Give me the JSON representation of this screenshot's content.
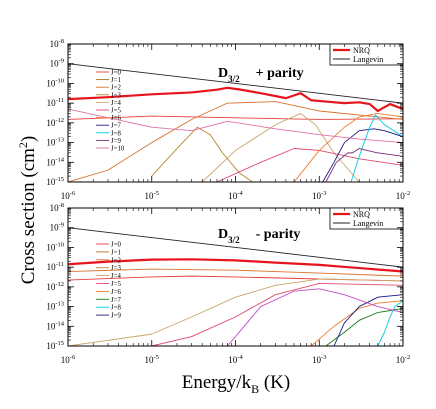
{
  "figure": {
    "ylabel": "Cross section (cm",
    "ylabel_sup": "2",
    "ylabel_close": ")",
    "xlabel_main": "Energy/k",
    "xlabel_sub": "B",
    "xlabel_unit": " (K)"
  },
  "chart_data": [
    {
      "type": "line",
      "title_main": "D",
      "title_sub": "3/2",
      "title_tail": "+ parity",
      "xscale": "log",
      "yscale": "log",
      "xlim": [
        1e-06,
        0.01
      ],
      "ylim": [
        1e-15,
        1e-08
      ],
      "x_ticks": [
        {
          "v": 1e-06,
          "b": "10",
          "e": "-6"
        },
        {
          "v": 1e-05,
          "b": "10",
          "e": "-5"
        },
        {
          "v": 0.0001,
          "b": "10",
          "e": "-4"
        },
        {
          "v": 0.001,
          "b": "10",
          "e": "-3"
        },
        {
          "v": 0.01,
          "b": "10",
          "e": "-2"
        }
      ],
      "y_ticks": [
        {
          "v": 1e-08,
          "b": "10",
          "e": "-8"
        },
        {
          "v": 1e-09,
          "b": "10",
          "e": "-9"
        },
        {
          "v": 1e-10,
          "b": "10",
          "e": "-10"
        },
        {
          "v": 1e-11,
          "b": "10",
          "e": "-11"
        },
        {
          "v": 1e-12,
          "b": "10",
          "e": "-12"
        },
        {
          "v": 1e-13,
          "b": "10",
          "e": "-13"
        },
        {
          "v": 1e-14,
          "b": "10",
          "e": "-14"
        },
        {
          "v": 1e-15,
          "b": "10",
          "e": "-15"
        }
      ],
      "legend": [
        {
          "name": "NRQ",
          "color": "#e8141c",
          "width": 2.2
        },
        {
          "name": "Langevin",
          "color": "#222222",
          "width": 0.9
        }
      ],
      "j_legend": [
        {
          "name": "J=0",
          "color": "#e83c3c"
        },
        {
          "name": "J=1",
          "color": "#a5701c"
        },
        {
          "name": "J=2",
          "color": "#d8722c"
        },
        {
          "name": "J=3",
          "color": "#b8882a"
        },
        {
          "name": "J=4",
          "color": "#c9a66b"
        },
        {
          "name": "J=5",
          "color": "#e04a6c"
        },
        {
          "name": "J=6",
          "color": "#ee7a30"
        },
        {
          "name": "J=7",
          "color": "#1a1a80"
        },
        {
          "name": "J=8",
          "color": "#00c8e0"
        },
        {
          "name": "J=9",
          "color": "#7a2d7a"
        },
        {
          "name": "J=10",
          "color": "#e070a8"
        }
      ],
      "series": [
        {
          "name": "Langevin",
          "color": "#222222",
          "width": 0.9,
          "x": [
            1e-06,
            0.01
          ],
          "y": [
            1e-09,
            1e-11
          ]
        },
        {
          "name": "J=0",
          "color": "#e83c3c",
          "width": 0.9,
          "x": [
            1e-06,
            1e-05,
            0.0001,
            0.001,
            0.01
          ],
          "y": [
            1.5e-12,
            2.2e-12,
            1.8e-12,
            1.5e-12,
            1.6e-12
          ]
        },
        {
          "name": "J=2",
          "color": "#d8722c",
          "width": 0.9,
          "x": [
            1e-06,
            3e-06,
            1e-05,
            3e-05,
            8e-05,
            0.0003,
            0.001,
            0.01
          ],
          "y": [
            1e-15,
            4e-15,
            1e-13,
            1.5e-12,
            1e-11,
            1.2e-11,
            4e-12,
            1.5e-12
          ]
        },
        {
          "name": "J=3",
          "color": "#b8882a",
          "width": 0.9,
          "x": [
            1e-05,
            2e-05,
            3.5e-05,
            5e-05,
            7e-05,
            0.00011,
            0.00016
          ],
          "y": [
            2e-15,
            5e-14,
            6e-13,
            2.5e-13,
            3e-14,
            3e-15,
            1e-15
          ]
        },
        {
          "name": "J=4",
          "color": "#c9a66b",
          "width": 0.9,
          "x": [
            4e-05,
            0.0001,
            0.0003,
            0.0006,
            0.0009,
            0.0015,
            0.003
          ],
          "y": [
            1e-15,
            4e-14,
            8e-13,
            3e-12,
            8e-13,
            3e-14,
            1e-15
          ]
        },
        {
          "name": "J=5",
          "color": "#e04a6c",
          "width": 0.9,
          "x": [
            6e-05,
            0.0002,
            0.0005,
            0.001,
            0.003,
            0.01
          ],
          "y": [
            1e-15,
            1e-14,
            5e-14,
            4e-14,
            1.5e-14,
            7e-15
          ]
        },
        {
          "name": "J=6",
          "color": "#ee7a30",
          "width": 0.9,
          "x": [
            0.0005,
            0.001,
            0.002,
            0.003,
            0.005,
            0.01
          ],
          "y": [
            1e-15,
            4e-14,
            6e-13,
            2e-12,
            3e-12,
            2e-12
          ]
        },
        {
          "name": "J=7",
          "color": "#1a1a80",
          "width": 0.9,
          "x": [
            0.0011,
            0.0015,
            0.002,
            0.003,
            0.0045,
            0.006,
            0.01
          ],
          "y": [
            1e-15,
            1e-14,
            1e-13,
            4e-13,
            5e-13,
            4e-13,
            2e-13
          ]
        },
        {
          "name": "J=8",
          "color": "#00c8e0",
          "width": 0.9,
          "x": [
            0.0024,
            0.003,
            0.004,
            0.0047,
            0.006,
            0.01
          ],
          "y": [
            1e-15,
            2e-14,
            6e-13,
            2.5e-12,
            8e-13,
            2e-13
          ]
        },
        {
          "name": "J=9",
          "color": "#7a2d7a",
          "width": 0.9,
          "x": [
            0.0012,
            0.0016,
            0.0022,
            0.0025,
            0.003,
            0.005,
            0.01
          ],
          "y": [
            1e-15,
            1e-14,
            3e-14,
            3e-14,
            5e-14,
            3e-14,
            2e-14
          ]
        },
        {
          "name": "J=10",
          "color": "#e070a8",
          "width": 0.9,
          "x": [
            1e-06,
            1e-05,
            3e-05,
            8e-05,
            0.0003,
            0.001,
            0.003,
            0.01
          ],
          "y": [
            5e-12,
            6e-13,
            4e-13,
            1.2e-12,
            5e-13,
            2.5e-13,
            1.5e-13,
            1e-13
          ]
        },
        {
          "name": "NRQ",
          "color": "#e8141c",
          "width": 2.2,
          "x": [
            1e-06,
            3e-06,
            1e-05,
            3e-05,
            6e-05,
            8e-05,
            0.00011,
            0.0002,
            0.0004,
            0.0006,
            0.0008,
            0.0012,
            0.002,
            0.003,
            0.004,
            0.005,
            0.007,
            0.01
          ],
          "y": [
            1.6e-11,
            2e-11,
            2.8e-11,
            3.5e-11,
            4.8e-11,
            6e-11,
            5e-11,
            3.2e-11,
            1.8e-11,
            3.2e-11,
            1.4e-11,
            1.2e-11,
            1e-11,
            1.1e-11,
            9e-12,
            4e-12,
            9e-12,
            5e-12
          ]
        }
      ]
    },
    {
      "type": "line",
      "title_main": "D",
      "title_sub": "3/2",
      "title_tail": "- parity",
      "xscale": "log",
      "yscale": "log",
      "xlim": [
        1e-06,
        0.01
      ],
      "ylim": [
        1e-15,
        1e-08
      ],
      "x_ticks": [
        {
          "v": 1e-06,
          "b": "10",
          "e": "-6"
        },
        {
          "v": 1e-05,
          "b": "10",
          "e": "-5"
        },
        {
          "v": 0.0001,
          "b": "10",
          "e": "-4"
        },
        {
          "v": 0.001,
          "b": "10",
          "e": "-3"
        },
        {
          "v": 0.01,
          "b": "10",
          "e": "-2"
        }
      ],
      "y_ticks": [
        {
          "v": 1e-08,
          "b": "10",
          "e": "-8"
        },
        {
          "v": 1e-09,
          "b": "10",
          "e": "-9"
        },
        {
          "v": 1e-10,
          "b": "10",
          "e": "-10"
        },
        {
          "v": 1e-11,
          "b": "10",
          "e": "-11"
        },
        {
          "v": 1e-12,
          "b": "10",
          "e": "-12"
        },
        {
          "v": 1e-13,
          "b": "10",
          "e": "-13"
        },
        {
          "v": 1e-14,
          "b": "10",
          "e": "-14"
        },
        {
          "v": 1e-15,
          "b": "10",
          "e": "-15"
        }
      ],
      "legend": [
        {
          "name": "NRQ",
          "color": "#e8141c",
          "width": 2.2
        },
        {
          "name": "Langevin",
          "color": "#222222",
          "width": 0.9
        }
      ],
      "j_legend": [
        {
          "name": "J=0",
          "color": "#e83c3c"
        },
        {
          "name": "J=1",
          "color": "#a5701c"
        },
        {
          "name": "J=2",
          "color": "#d8722c"
        },
        {
          "name": "J=3",
          "color": "#b8882a"
        },
        {
          "name": "J=4",
          "color": "#c9a66b"
        },
        {
          "name": "J=5",
          "color": "#e04a6c"
        },
        {
          "name": "J=6",
          "color": "#ee7a30"
        },
        {
          "name": "J=7",
          "color": "#1a7a1a"
        },
        {
          "name": "J=8",
          "color": "#00c8e0"
        },
        {
          "name": "J=9",
          "color": "#1a1a80"
        }
      ],
      "series": [
        {
          "name": "Langevin",
          "color": "#222222",
          "width": 0.9,
          "x": [
            1e-06,
            0.01
          ],
          "y": [
            1e-09,
            1e-11
          ]
        },
        {
          "name": "J=0",
          "color": "#e83c3c",
          "width": 0.9,
          "x": [
            1e-06,
            1e-05,
            3e-05,
            0.0001,
            0.001,
            0.01
          ],
          "y": [
            2.2e-12,
            3.2e-12,
            3.5e-12,
            3.2e-12,
            2.5e-12,
            2e-12
          ]
        },
        {
          "name": "J=2",
          "color": "#d8722c",
          "width": 0.9,
          "x": [
            1e-06,
            1e-05,
            0.0001,
            0.001,
            0.01
          ],
          "y": [
            6e-12,
            8e-12,
            7e-12,
            5e-12,
            3.5e-12
          ]
        },
        {
          "name": "J=4",
          "color": "#c9a66b",
          "width": 0.9,
          "x": [
            1e-06,
            1e-05,
            3e-05,
            0.0001,
            0.0003,
            0.001,
            0.01
          ],
          "y": [
            1e-15,
            4e-15,
            3e-14,
            3e-13,
            1.2e-12,
            2.5e-12,
            2e-12
          ]
        },
        {
          "name": "J=5",
          "color": "#e04a6c",
          "width": 0.9,
          "x": [
            1e-06,
            1e-05,
            3e-05,
            0.0001,
            0.0003,
            0.001,
            0.01
          ],
          "y": [
            6e-16,
            1e-15,
            3e-15,
            3e-14,
            4e-13,
            1.5e-12,
            1.2e-12
          ]
        },
        {
          "name": "J=6",
          "color": "#ee7a30",
          "width": 0.9,
          "x": [
            0.0008,
            0.0015,
            0.003,
            0.005,
            0.01
          ],
          "y": [
            1e-15,
            1e-14,
            8e-14,
            1.5e-13,
            2e-13
          ]
        },
        {
          "name": "J=7",
          "color": "#1a7a1a",
          "width": 0.9,
          "x": [
            0.0012,
            0.002,
            0.003,
            0.005,
            0.01
          ],
          "y": [
            1e-15,
            5e-15,
            2e-14,
            5e-14,
            8e-14
          ]
        },
        {
          "name": "J=8",
          "color": "#00c8e0",
          "width": 0.9,
          "x": [
            0.005,
            0.006,
            0.007,
            0.008,
            0.01
          ],
          "y": [
            1e-15,
            5e-15,
            3e-14,
            1e-13,
            2e-13
          ]
        },
        {
          "name": "J=9",
          "color": "#1a1a80",
          "width": 0.9,
          "x": [
            0.0015,
            0.002,
            0.003,
            0.005,
            0.01
          ],
          "y": [
            1e-15,
            1.5e-14,
            1e-13,
            3e-13,
            4e-13
          ]
        },
        {
          "name": "J=10",
          "color": "#c050c8",
          "width": 0.9,
          "x": [
            8e-05,
            0.0001,
            0.0002,
            0.0005,
            0.001,
            0.002,
            0.005,
            0.01
          ],
          "y": [
            1e-15,
            3e-15,
            1e-13,
            6e-13,
            8e-13,
            4e-13,
            1e-13,
            5e-14
          ]
        },
        {
          "name": "NRQ",
          "color": "#e8141c",
          "width": 2.2,
          "x": [
            1e-06,
            3e-06,
            1e-05,
            3e-05,
            0.0001,
            0.0003,
            0.001,
            0.003,
            0.01
          ],
          "y": [
            1.4e-11,
            1.9e-11,
            2.4e-11,
            2.5e-11,
            2.2e-11,
            1.7e-11,
            1.3e-11,
            9e-12,
            6e-12
          ]
        }
      ]
    }
  ]
}
